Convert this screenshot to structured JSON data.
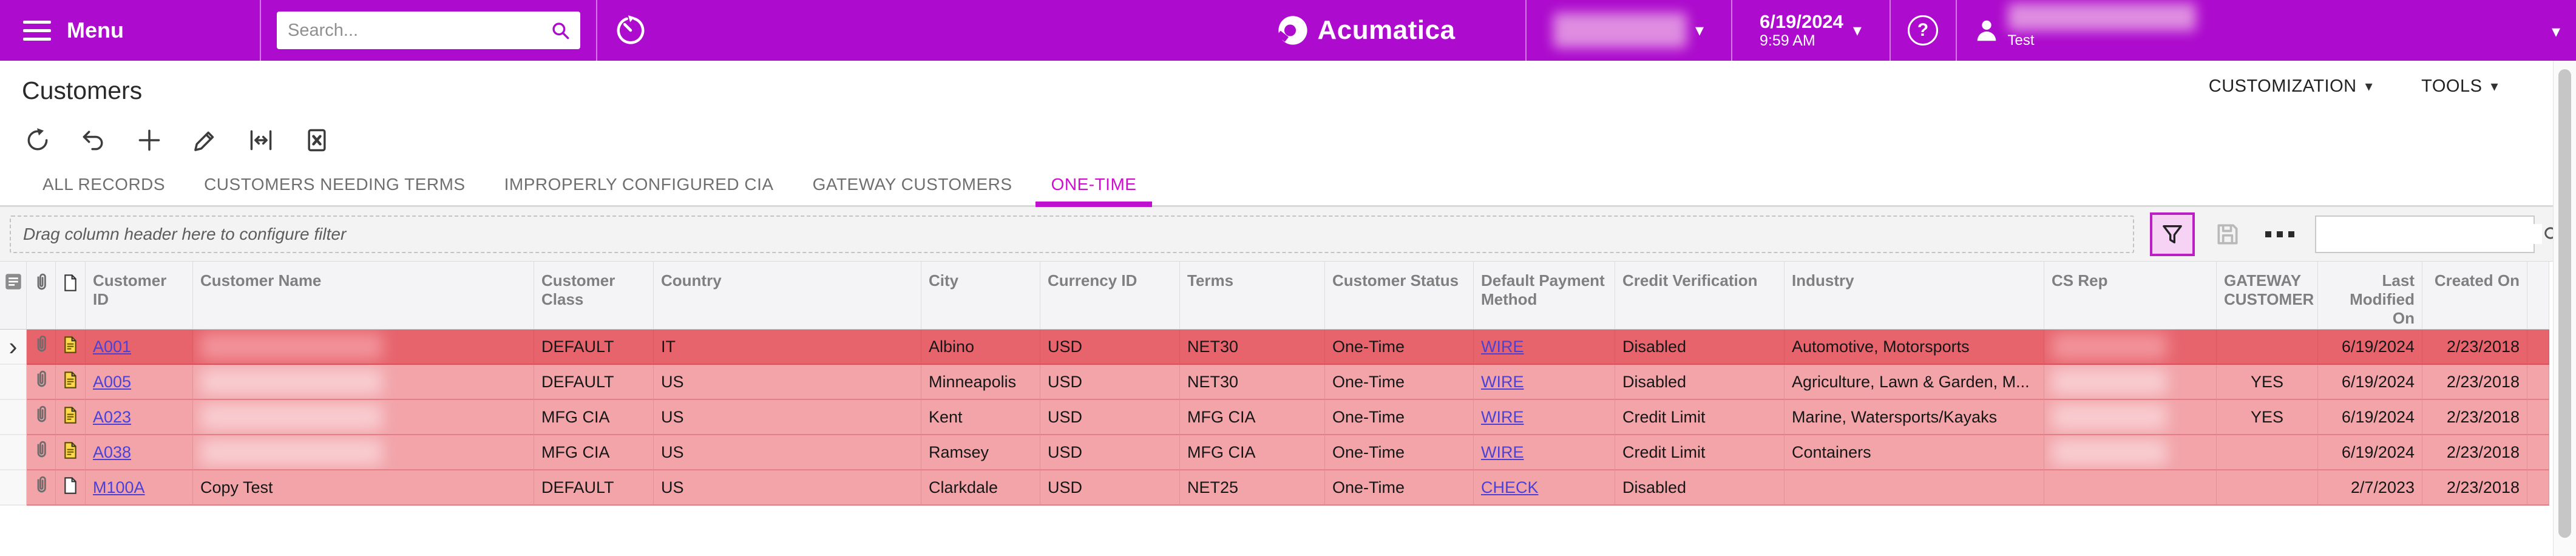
{
  "colors": {
    "accent": "#ad0bcd",
    "active_tab": "#cf0ccf",
    "row_selected_bg": "#e7646d",
    "row_bg": "#f2a4a9",
    "link": "#4a42d8"
  },
  "icons": {
    "hamburger": "menu-icon",
    "magnifier": "search-icon",
    "clock": "business-date-icon",
    "help": "?",
    "person": "user-icon",
    "toolbar": [
      "refresh-icon",
      "undo-icon",
      "add-icon",
      "edit-icon",
      "fit-width-icon",
      "export-excel-icon"
    ],
    "filter": "funnel-icon",
    "save": "floppy-icon",
    "more": "ellipsis-icon",
    "paperclip": "attachment-icon",
    "note": "note-icon"
  },
  "topbar": {
    "menu_label": "Menu",
    "search_placeholder": "Search...",
    "brand": "Acumatica",
    "date": "6/19/2024",
    "time": "9:59 AM",
    "user_caption": "Test"
  },
  "page": {
    "title": "Customers",
    "customization_label": "CUSTOMIZATION",
    "tools_label": "TOOLS"
  },
  "tabs": [
    {
      "label": "ALL RECORDS",
      "active": false
    },
    {
      "label": "CUSTOMERS NEEDING TERMS",
      "active": false
    },
    {
      "label": "IMPROPERLY CONFIGURED CIA",
      "active": false
    },
    {
      "label": "GATEWAY CUSTOMERS",
      "active": false
    },
    {
      "label": "ONE-TIME",
      "active": true
    }
  ],
  "filterbar": {
    "drag_hint": "Drag column header here to configure filter",
    "search_value": ""
  },
  "grid": {
    "columns": [
      "Customer ID",
      "Customer Name",
      "Customer Class",
      "Country",
      "City",
      "Currency ID",
      "Terms",
      "Customer Status",
      "Default Payment Method",
      "Credit Verification",
      "Industry",
      "CS Rep",
      "GATEWAY CUSTOMER",
      "Last Modified On",
      "Created On"
    ],
    "rows": [
      {
        "selected": true,
        "note_filled": true,
        "customer_id": "A001",
        "customer_name": "",
        "customer_name_redacted": true,
        "customer_class": "DEFAULT",
        "country": "IT",
        "city": "Albino",
        "currency_id": "USD",
        "terms": "NET30",
        "customer_status": "One-Time",
        "default_payment_method": "WIRE",
        "credit_verification": "Disabled",
        "industry": "Automotive, Motorsports",
        "cs_rep": "",
        "cs_rep_redacted": true,
        "gateway_customer": "",
        "last_modified_on": "6/19/2024",
        "created_on": "2/23/2018"
      },
      {
        "selected": false,
        "note_filled": true,
        "customer_id": "A005",
        "customer_name": "",
        "customer_name_redacted": true,
        "customer_class": "DEFAULT",
        "country": "US",
        "city": "Minneapolis",
        "currency_id": "USD",
        "terms": "NET30",
        "customer_status": "One-Time",
        "default_payment_method": "WIRE",
        "credit_verification": "Disabled",
        "industry": "Agriculture, Lawn & Garden, M...",
        "cs_rep": "",
        "cs_rep_redacted": true,
        "gateway_customer": "YES",
        "last_modified_on": "6/19/2024",
        "created_on": "2/23/2018"
      },
      {
        "selected": false,
        "note_filled": true,
        "customer_id": "A023",
        "customer_name": "",
        "customer_name_redacted": true,
        "customer_class": "MFG CIA",
        "country": "US",
        "city": "Kent",
        "currency_id": "USD",
        "terms": "MFG CIA",
        "customer_status": "One-Time",
        "default_payment_method": "WIRE",
        "credit_verification": "Credit Limit",
        "industry": "Marine, Watersports/Kayaks",
        "cs_rep": "",
        "cs_rep_redacted": true,
        "gateway_customer": "YES",
        "last_modified_on": "6/19/2024",
        "created_on": "2/23/2018"
      },
      {
        "selected": false,
        "note_filled": true,
        "customer_id": "A038",
        "customer_name": "",
        "customer_name_redacted": true,
        "customer_class": "MFG CIA",
        "country": "US",
        "city": "Ramsey",
        "currency_id": "USD",
        "terms": "MFG CIA",
        "customer_status": "One-Time",
        "default_payment_method": "WIRE",
        "credit_verification": "Credit Limit",
        "industry": "Containers",
        "cs_rep": "",
        "cs_rep_redacted": true,
        "gateway_customer": "",
        "last_modified_on": "6/19/2024",
        "created_on": "2/23/2018"
      },
      {
        "selected": false,
        "note_filled": false,
        "customer_id": "M100A",
        "customer_name": "Copy Test",
        "customer_name_redacted": false,
        "customer_class": "DEFAULT",
        "country": "US",
        "city": "Clarkdale",
        "currency_id": "USD",
        "terms": "NET25",
        "customer_status": "One-Time",
        "default_payment_method": "CHECK",
        "credit_verification": "Disabled",
        "industry": "",
        "cs_rep": "",
        "cs_rep_redacted": false,
        "gateway_customer": "",
        "last_modified_on": "2/7/2023",
        "created_on": "2/23/2018"
      }
    ]
  }
}
